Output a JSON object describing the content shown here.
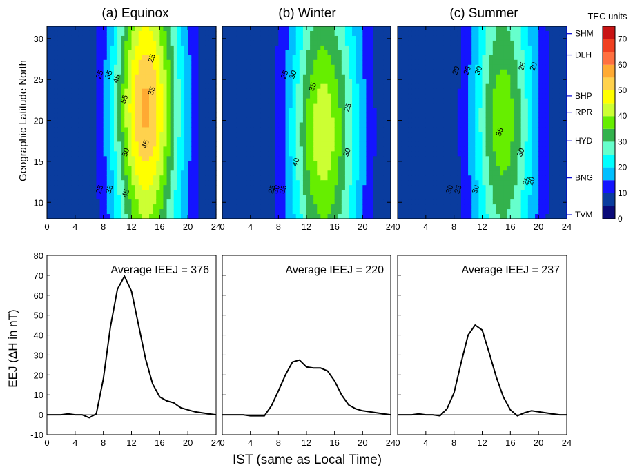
{
  "chart_data": [
    {
      "type": "heatmap",
      "title": "(a) Equinox",
      "xlabel": "",
      "ylabel": "Geographic Latitude North",
      "xlim": [
        0,
        24
      ],
      "ylim": [
        8,
        31.5
      ],
      "x_ticks": [
        0,
        4,
        8,
        12,
        16,
        20,
        24
      ],
      "y_ticks": [
        10,
        15,
        20,
        25,
        30
      ],
      "peak_value": 55,
      "peak_local_time": 14,
      "peak_latitude": 22,
      "contour_labels": [
        {
          "text": "25",
          "x": 7.8,
          "y": 11.5
        },
        {
          "text": "35",
          "x": 9.2,
          "y": 11.5
        },
        {
          "text": "45",
          "x": 11.5,
          "y": 11
        },
        {
          "text": "25",
          "x": 7.8,
          "y": 25.5
        },
        {
          "text": "35",
          "x": 9.1,
          "y": 25.5
        },
        {
          "text": "45",
          "x": 10.2,
          "y": 25
        },
        {
          "text": "55",
          "x": 11.3,
          "y": 22.5
        },
        {
          "text": "50",
          "x": 11.5,
          "y": 16
        },
        {
          "text": "45",
          "x": 14.3,
          "y": 17
        },
        {
          "text": "35",
          "x": 15.2,
          "y": 23.5
        },
        {
          "text": "25",
          "x": 15.2,
          "y": 27.5
        }
      ]
    },
    {
      "type": "heatmap",
      "title": "(b) Winter",
      "xlim": [
        0,
        24
      ],
      "ylim": [
        8,
        31.5
      ],
      "x_ticks": [
        0,
        4,
        8,
        12,
        16,
        20,
        24
      ],
      "peak_value": 40,
      "peak_local_time": 14,
      "peak_latitude": 18,
      "contour_labels": [
        {
          "text": "25",
          "x": 7.4,
          "y": 11.5
        },
        {
          "text": "30",
          "x": 8.0,
          "y": 11.5
        },
        {
          "text": "35",
          "x": 9.0,
          "y": 11.5
        },
        {
          "text": "40",
          "x": 10.8,
          "y": 14.8
        },
        {
          "text": "25",
          "x": 9.2,
          "y": 25.5
        },
        {
          "text": "30",
          "x": 10.4,
          "y": 25.5
        },
        {
          "text": "35",
          "x": 13.2,
          "y": 24
        },
        {
          "text": "30",
          "x": 18.1,
          "y": 16
        },
        {
          "text": "25",
          "x": 18.2,
          "y": 21.5
        }
      ]
    },
    {
      "type": "heatmap",
      "title": "(c) Summer",
      "xlim": [
        0,
        24
      ],
      "ylim": [
        8,
        31.5
      ],
      "x_ticks": [
        0,
        4,
        8,
        12,
        16,
        20,
        24
      ],
      "right_axis_labels": [
        "SHM",
        "DLH",
        "BHP",
        "RPR",
        "HYD",
        "BNG",
        "TVM"
      ],
      "peak_value": 38,
      "peak_local_time": 15,
      "peak_latitude": 20,
      "contour_labels": [
        {
          "text": "30",
          "x": 7.7,
          "y": 11.5
        },
        {
          "text": "25",
          "x": 8.9,
          "y": 11.5
        },
        {
          "text": "30",
          "x": 11.4,
          "y": 11.5
        },
        {
          "text": "20",
          "x": 8.6,
          "y": 26
        },
        {
          "text": "25",
          "x": 10.2,
          "y": 26
        },
        {
          "text": "30",
          "x": 11.8,
          "y": 26
        },
        {
          "text": "35",
          "x": 14.8,
          "y": 18.5
        },
        {
          "text": "30",
          "x": 17.8,
          "y": 16
        },
        {
          "text": "25",
          "x": 18.0,
          "y": 26.5
        },
        {
          "text": "20",
          "x": 19.6,
          "y": 26.5
        },
        {
          "text": "25",
          "x": 18.6,
          "y": 12.5
        },
        {
          "text": "20",
          "x": 19.3,
          "y": 12.5
        }
      ]
    },
    {
      "type": "line",
      "title": "Average IEEJ = 376",
      "xlabel": "",
      "ylabel": "EEJ (ΔH in nT)",
      "xlim": [
        0,
        24
      ],
      "ylim": [
        -10,
        80
      ],
      "x_ticks": [
        0,
        4,
        8,
        12,
        16,
        20,
        24
      ],
      "y_ticks": [
        -10,
        0,
        10,
        20,
        30,
        40,
        50,
        60,
        70,
        80
      ],
      "x": [
        0,
        1,
        2,
        3,
        4,
        5,
        6,
        7,
        8,
        9,
        10,
        11,
        12,
        13,
        14,
        15,
        16,
        17,
        18,
        19,
        20,
        21,
        22,
        23,
        24
      ],
      "y": [
        0,
        0,
        0,
        0.5,
        0,
        0,
        -1.5,
        0.5,
        18,
        44,
        63,
        69.5,
        62,
        45,
        28,
        15.5,
        9,
        7,
        6,
        3.5,
        2.5,
        1.5,
        1,
        0.5,
        0
      ]
    },
    {
      "type": "line",
      "title": "Average IEEJ = 220",
      "xlim": [
        0,
        24
      ],
      "ylim": [
        -10,
        80
      ],
      "x_ticks": [
        0,
        4,
        8,
        12,
        16,
        20,
        24
      ],
      "x": [
        0,
        1,
        2,
        3,
        4,
        5,
        6,
        7,
        8,
        9,
        10,
        11,
        12,
        13,
        14,
        15,
        16,
        17,
        18,
        19,
        20,
        21,
        22,
        23,
        24
      ],
      "y": [
        0,
        0,
        0,
        0,
        -0.5,
        -0.5,
        -0.5,
        4.5,
        12,
        20,
        26.5,
        27.5,
        24,
        23.5,
        23.5,
        22,
        17,
        10,
        5,
        3,
        2,
        1.5,
        1,
        0.5,
        0
      ]
    },
    {
      "type": "line",
      "title": "Average IEEJ = 237",
      "xlim": [
        0,
        24
      ],
      "ylim": [
        -10,
        80
      ],
      "x_ticks": [
        0,
        4,
        8,
        12,
        16,
        20,
        24
      ],
      "x": [
        0,
        1,
        2,
        3,
        4,
        5,
        6,
        7,
        8,
        9,
        10,
        11,
        12,
        13,
        14,
        15,
        16,
        17,
        18,
        19,
        20,
        21,
        22,
        23,
        24
      ],
      "y": [
        0,
        0,
        0,
        0.5,
        0,
        0,
        -0.5,
        3,
        11,
        26,
        40,
        45,
        42.5,
        31,
        19,
        9,
        2.5,
        -0.5,
        1,
        2,
        1.5,
        1,
        0.5,
        0,
        0
      ]
    }
  ],
  "right_axis_station_latitudes": [
    30.6,
    28,
    23,
    21,
    17.5,
    13,
    8.5
  ],
  "colorbar": {
    "title": "TEC units",
    "ticks": [
      0,
      10,
      20,
      30,
      40,
      50,
      60,
      70
    ],
    "levels": [
      0,
      5,
      10,
      15,
      20,
      25,
      30,
      35,
      40,
      45,
      50,
      55,
      60,
      65,
      70,
      75
    ],
    "colors": [
      "#262626",
      "#0a0a78",
      "#0a3c9e",
      "#1414ff",
      "#00bfff",
      "#00ffff",
      "#66ffcc",
      "#33b24d",
      "#66ee00",
      "#ccff33",
      "#ffff00",
      "#ffd24d",
      "#ffaa33",
      "#ff7040",
      "#f04020",
      "#c81414",
      "#8c0000"
    ]
  },
  "shared_xlabel": "IST (same as Local Time)"
}
